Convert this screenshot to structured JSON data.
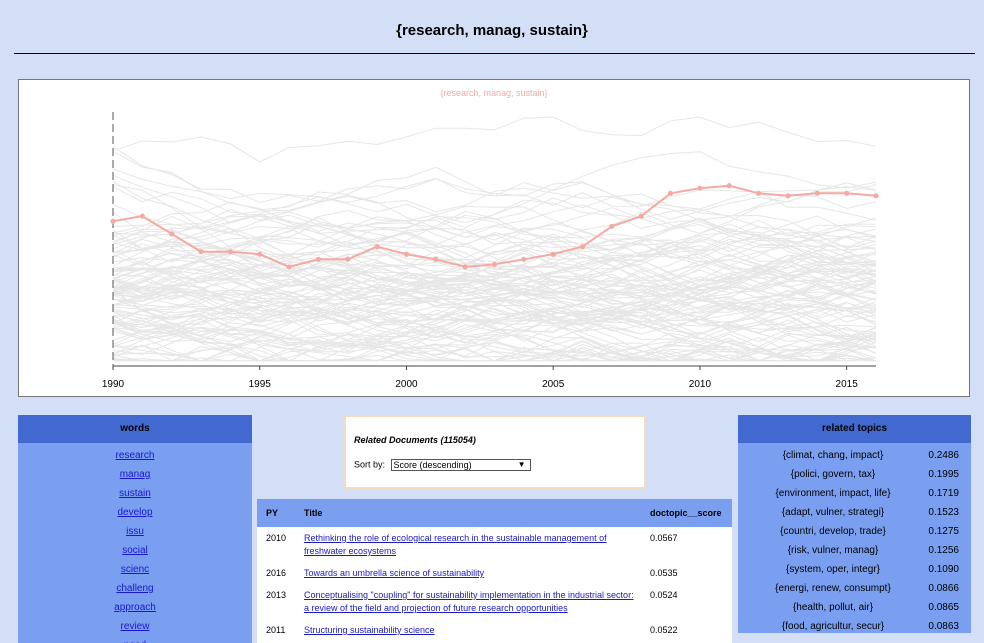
{
  "page": {
    "title": "{research, manag, sustain}"
  },
  "chart_data": {
    "type": "line",
    "title": "{research, manag, sustain}",
    "xlabel": "",
    "ylabel": "",
    "x_ticks": [
      "1990",
      "1995",
      "2000",
      "2005",
      "2010",
      "2015"
    ],
    "xlim": [
      1990,
      2016
    ],
    "ylim": [
      0,
      1
    ],
    "highlight_color": "#f4aaa2",
    "background_color": "#e6e6e6",
    "series": [
      {
        "x": [
          1990,
          1991,
          1992,
          1993,
          1994,
          1995,
          1996,
          1997,
          1998,
          1999,
          2000,
          2001,
          2002,
          2003,
          2004,
          2005,
          2006,
          2007,
          2008,
          2009,
          2010,
          2011,
          2012,
          2013,
          2014,
          2015,
          2016
        ],
        "values": [
          0.57,
          0.59,
          0.52,
          0.45,
          0.45,
          0.44,
          0.39,
          0.42,
          0.42,
          0.47,
          0.44,
          0.42,
          0.39,
          0.4,
          0.42,
          0.44,
          0.47,
          0.55,
          0.59,
          0.68,
          0.7,
          0.71,
          0.68,
          0.67,
          0.68,
          0.68,
          0.67
        ]
      }
    ]
  },
  "words": {
    "header": "words",
    "items": [
      "research",
      "manag",
      "sustain",
      "develop",
      "issu",
      "social",
      "scienc",
      "challeng",
      "approach",
      "review",
      "need"
    ]
  },
  "docs": {
    "count_label": "Related Documents (115054)",
    "sort_label": "Sort by:",
    "sort_value": "Score (descending)",
    "columns": [
      "PY",
      "Title",
      "doctopic__score"
    ],
    "rows": [
      {
        "py": "2010",
        "title": "Rethinking the role of ecological research in the sustainable management of freshwater ecosystems",
        "score": "0.0567"
      },
      {
        "py": "2016",
        "title": "Towards an umbrella science of sustainability",
        "score": "0.0535"
      },
      {
        "py": "2013",
        "title": "Conceptualising \"coupling\" for sustainability implementation in the industrial sector: a review of the field and projection of future research opportunities",
        "score": "0.0524"
      },
      {
        "py": "2011",
        "title": "Structuring sustainability science",
        "score": "0.0522"
      }
    ]
  },
  "related": {
    "header": "related topics",
    "items": [
      {
        "name": "{climat, chang, impact}",
        "score": "0.2486"
      },
      {
        "name": "{polici, govern, tax}",
        "score": "0.1995"
      },
      {
        "name": "{environment, impact, life}",
        "score": "0.1719"
      },
      {
        "name": "{adapt, vulner, strategi}",
        "score": "0.1523"
      },
      {
        "name": "{countri, develop, trade}",
        "score": "0.1275"
      },
      {
        "name": "{risk, vulner, manag}",
        "score": "0.1256"
      },
      {
        "name": "{system, oper, integr}",
        "score": "0.1090"
      },
      {
        "name": "{energi, renew, consumpt}",
        "score": "0.0866"
      },
      {
        "name": "{health, pollut, air}",
        "score": "0.0865"
      },
      {
        "name": "{food, agricultur, secur}",
        "score": "0.0863"
      }
    ]
  }
}
